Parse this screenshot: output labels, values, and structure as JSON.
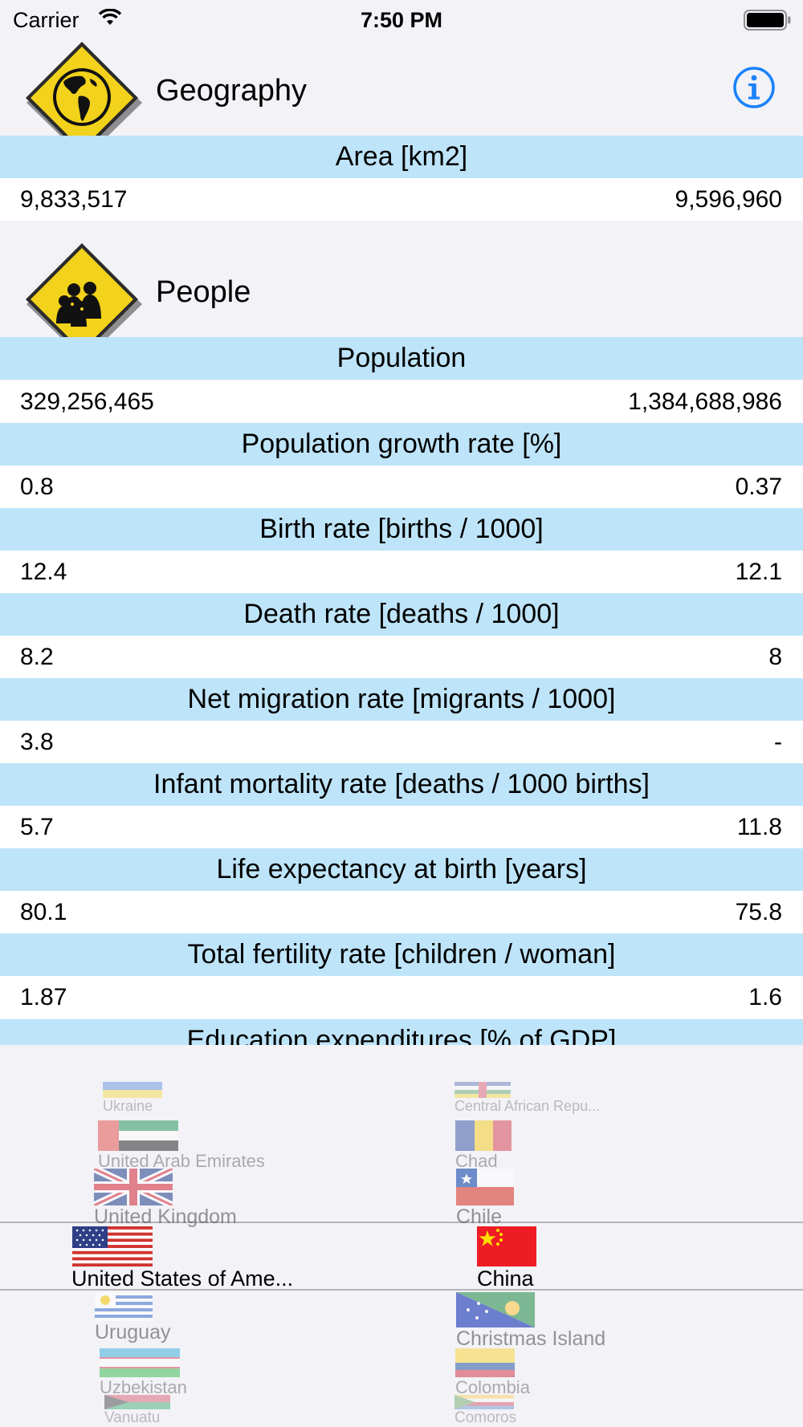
{
  "status_bar": {
    "carrier": "Carrier",
    "time": "7:50 PM"
  },
  "sections": {
    "geography": {
      "title": "Geography",
      "icon": "globe-americas-icon"
    },
    "people": {
      "title": "People",
      "icon": "people-group-icon"
    }
  },
  "stats": [
    {
      "label": "Area [km2]",
      "left": "9,833,517",
      "right": "9,596,960"
    },
    {
      "label": "Population",
      "left": "329,256,465",
      "right": "1,384,688,986"
    },
    {
      "label": "Population growth rate [%]",
      "left": "0.8",
      "right": "0.37"
    },
    {
      "label": "Birth rate [births / 1000]",
      "left": "12.4",
      "right": "12.1"
    },
    {
      "label": "Death rate [deaths / 1000]",
      "left": "8.2",
      "right": "8"
    },
    {
      "label": "Net migration rate [migrants / 1000]",
      "left": "3.8",
      "right": "-"
    },
    {
      "label": "Infant mortality rate [deaths / 1000 births]",
      "left": "5.7",
      "right": "11.8"
    },
    {
      "label": "Life expectancy at birth [years]",
      "left": "80.1",
      "right": "75.8"
    },
    {
      "label": "Total fertility rate [children / woman]",
      "left": "1.87",
      "right": "1.6"
    },
    {
      "label": "Education expenditures [% of GDP]"
    }
  ],
  "picker": {
    "left_column": [
      "Ukraine",
      "United Arab Emirates",
      "United Kingdom",
      "United States of Ame...",
      "Uruguay",
      "Uzbekistan",
      "Vanuatu"
    ],
    "right_column": [
      "Central African Repu...",
      "Chad",
      "Chile",
      "China",
      "Christmas Island",
      "Colombia",
      "Comoros"
    ],
    "selected_left": "United States of Ame...",
    "selected_right": "China"
  },
  "colors": {
    "label_band": "#bee4f9",
    "accent": "#1a82fb",
    "sign_yellow": "#f2d21a"
  }
}
